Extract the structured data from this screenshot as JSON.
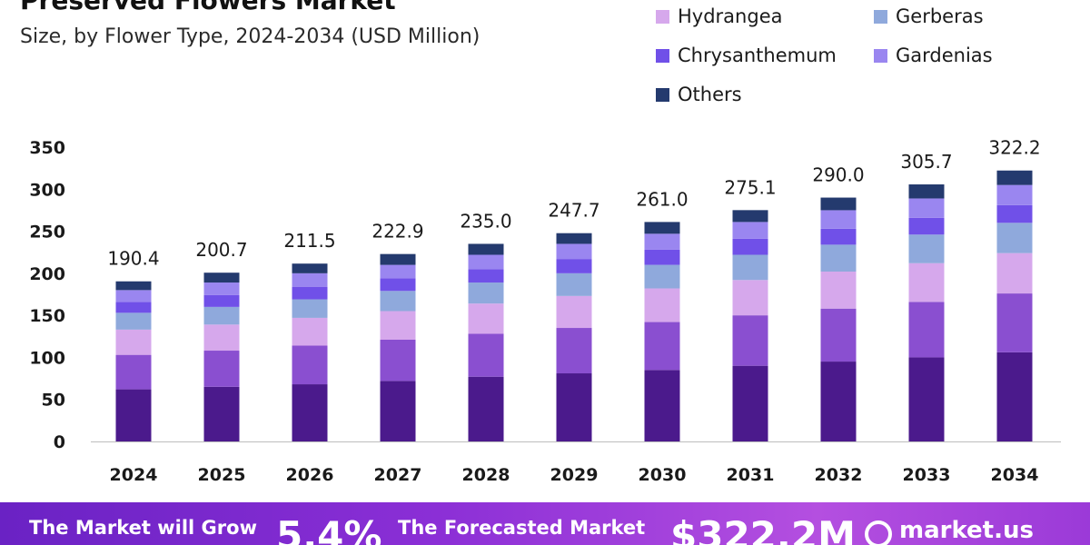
{
  "title": "Preserved Flowers Market",
  "subtitle": "Size, by Flower Type, 2024-2034 (USD Million)",
  "legend": [
    {
      "label": "Hydrangea",
      "color": "#d6a8ec"
    },
    {
      "label": "Gerberas",
      "color": "#8fa9dc"
    },
    {
      "label": "Chrysanthemum",
      "color": "#7050e8"
    },
    {
      "label": "Gardenias",
      "color": "#9a86f0"
    },
    {
      "label": "Others",
      "color": "#243a6e"
    }
  ],
  "chart_data": {
    "type": "bar",
    "stacked": true,
    "categories": [
      "2024",
      "2025",
      "2026",
      "2027",
      "2028",
      "2029",
      "2030",
      "2031",
      "2032",
      "2033",
      "2034"
    ],
    "totals": [
      "190.4",
      "200.7",
      "211.5",
      "222.9",
      "235.0",
      "247.7",
      "261.0",
      "275.1",
      "290.0",
      "305.7",
      "322.2"
    ],
    "ylim": [
      0,
      350
    ],
    "yticks": [
      0,
      50,
      100,
      150,
      200,
      250,
      300,
      350
    ],
    "grid": false,
    "series": [
      {
        "name": "",
        "color": "#4b1a8c",
        "values": [
          62,
          65,
          68,
          72,
          77,
          81,
          85,
          90,
          95,
          100,
          106
        ]
      },
      {
        "name": "",
        "color": "#8a4fd0",
        "values": [
          41,
          43,
          46,
          49,
          51,
          54,
          57,
          60,
          63,
          66,
          70
        ]
      },
      {
        "name": "Hydrangea",
        "color": "#d6a8ec",
        "values": [
          30,
          31,
          33,
          34,
          36,
          38,
          40,
          42,
          44,
          46,
          48
        ]
      },
      {
        "name": "Gerberas",
        "color": "#8fa9dc",
        "values": [
          20,
          21,
          22,
          24,
          25,
          27,
          28,
          30,
          32,
          34,
          36
        ]
      },
      {
        "name": "Chrysanthemum",
        "color": "#7050e8",
        "values": [
          13,
          14,
          15,
          15,
          16,
          17,
          18,
          19,
          19,
          20,
          21
        ]
      },
      {
        "name": "Gardenias",
        "color": "#9a86f0",
        "values": [
          14,
          15,
          16,
          16,
          17,
          18,
          19,
          20,
          22,
          23,
          24
        ]
      },
      {
        "name": "Others",
        "color": "#243a6e",
        "values": [
          10.4,
          11.7,
          11.5,
          12.9,
          13,
          12.7,
          14,
          14.1,
          15,
          16.7,
          17.2
        ]
      }
    ]
  },
  "banner": {
    "grow_text": "The Market will Grow",
    "cagr": "5.4%",
    "forecast_text": "The Forecasted Market",
    "forecast_value": "$322.2M",
    "brand": "market.us"
  }
}
